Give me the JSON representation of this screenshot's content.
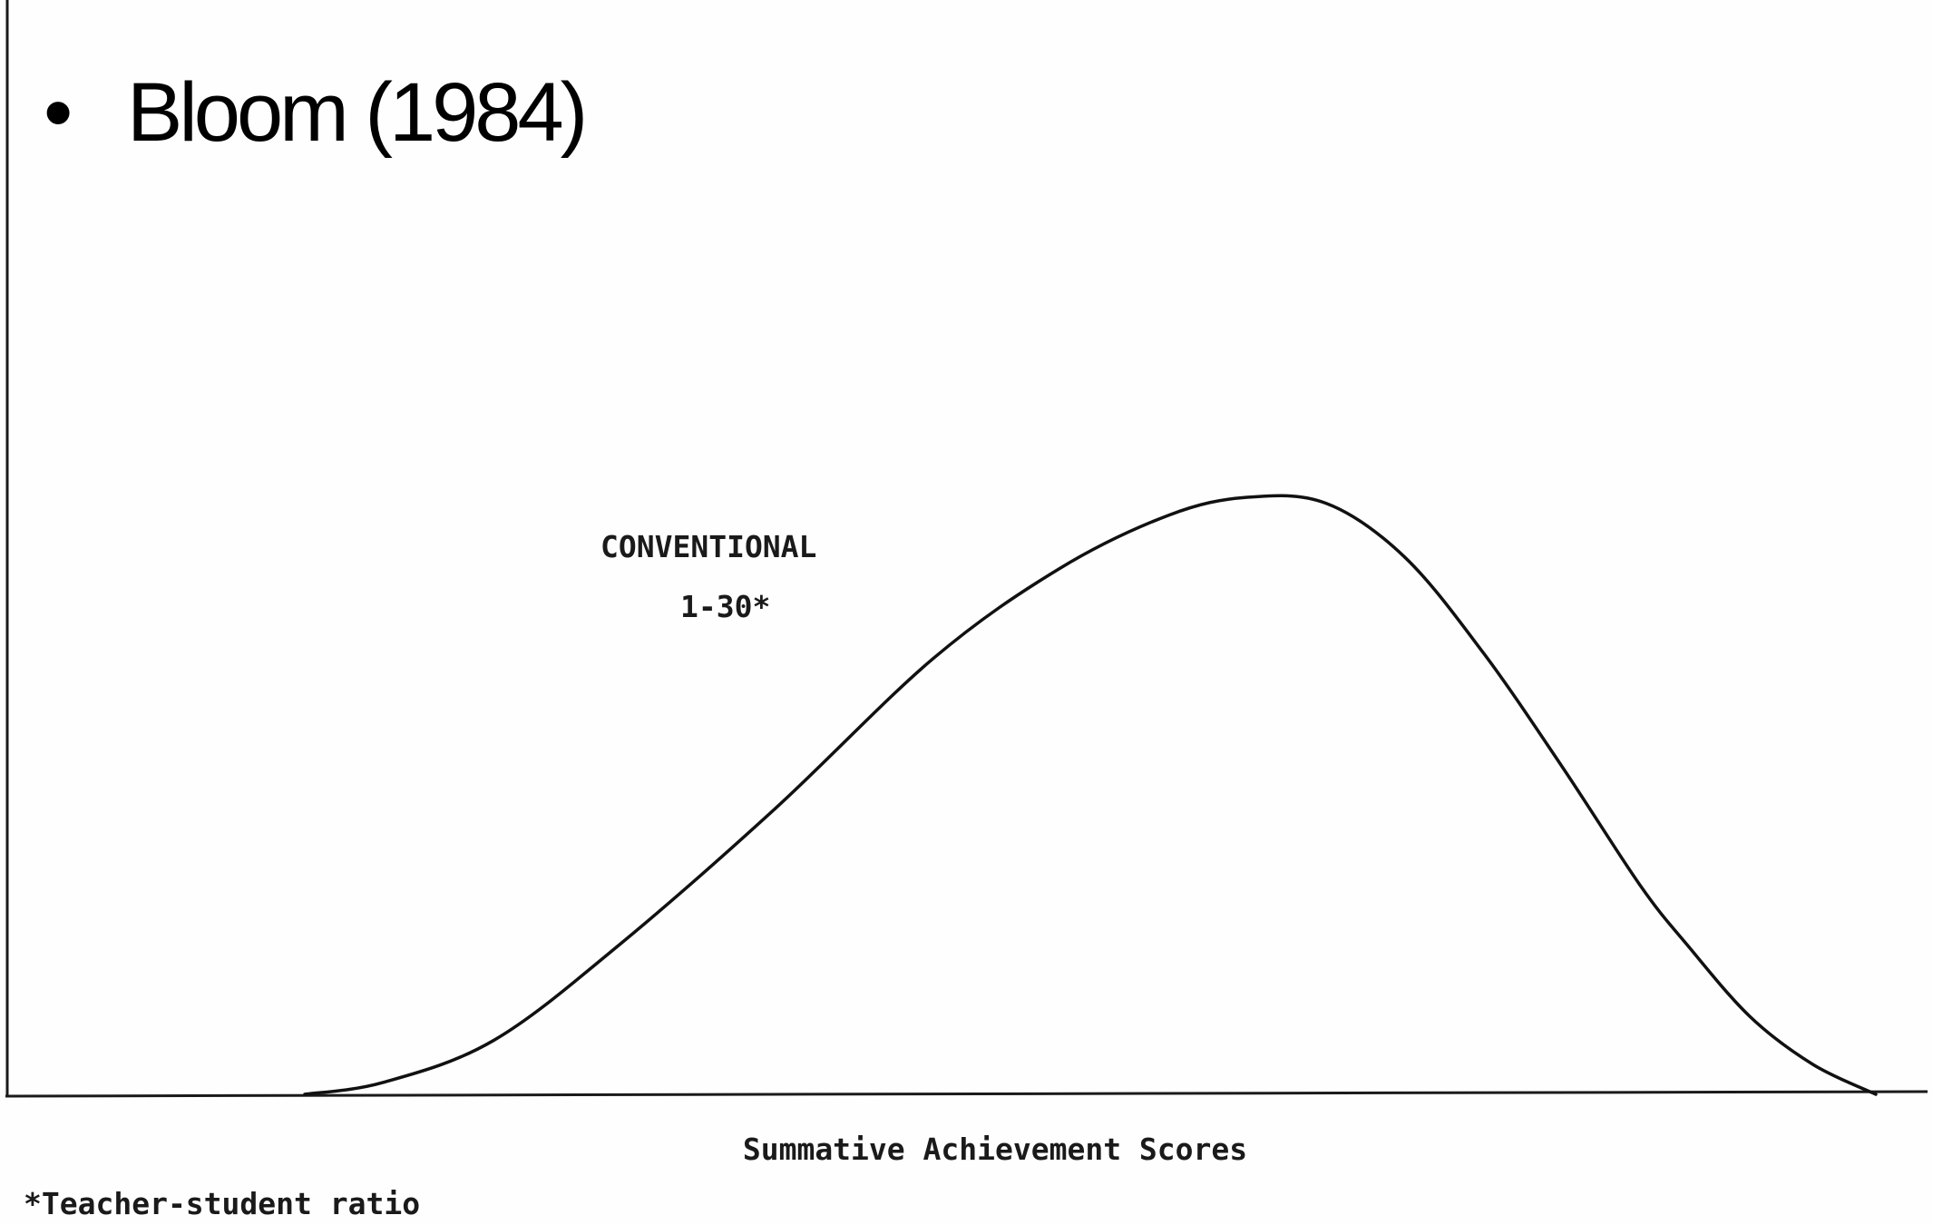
{
  "slide": {
    "bullet": "•",
    "title": "Bloom (1984)"
  },
  "chart_data": {
    "type": "line",
    "title": "",
    "xlabel": "Summative Achievement Scores",
    "ylabel": "",
    "grid": false,
    "footnote": "*Teacher-student ratio",
    "xlim": [
      0,
      100
    ],
    "ylim": [
      0,
      100
    ],
    "series": [
      {
        "name": "CONVENTIONAL",
        "label_line1": "CONVENTIONAL",
        "label_line2": "1-30*",
        "x": [
          0,
          5,
          12,
          20,
          30,
          40,
          48,
          55,
          60,
          65,
          70,
          75,
          80,
          85,
          88,
          92,
          96,
          100
        ],
        "y": [
          0,
          2,
          9,
          25,
          48,
          73,
          88,
          97,
          100,
          99,
          90,
          74,
          55,
          35,
          25,
          13,
          5,
          0
        ]
      }
    ]
  }
}
